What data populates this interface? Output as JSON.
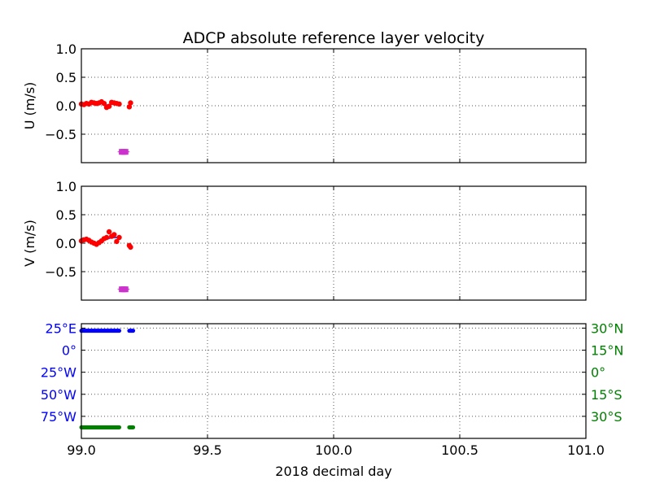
{
  "title": "ADCP absolute reference layer velocity",
  "xlabel": "2018 decimal day",
  "colors": {
    "u_points": "#ff0000",
    "u_line": "#4a3fd9",
    "flag": "#cc33cc",
    "lon": "#0000ff",
    "lat": "#008000",
    "grid": "#555555"
  },
  "chart_data": [
    {
      "type": "scatter",
      "ylabel": "U (m/s)",
      "xlim": [
        99.0,
        101.0
      ],
      "ylim": [
        -1.0,
        1.0
      ],
      "yticks": [
        1.0,
        0.5,
        0.0,
        -0.5
      ],
      "ytick_labels": [
        "1.0",
        "0.5",
        "0.0",
        "−0.5"
      ],
      "xticks": [
        99.0,
        99.5,
        100.0,
        100.5,
        101.0
      ],
      "grid": true,
      "series": [
        {
          "kind": "points",
          "x": [
            99.0,
            99.01,
            99.02,
            99.03,
            99.04,
            99.05,
            99.06,
            99.07,
            99.08,
            99.09,
            99.1,
            99.11,
            99.12,
            99.13,
            99.14,
            99.15,
            99.19,
            99.195
          ],
          "y": [
            0.03,
            0.02,
            0.04,
            0.03,
            0.06,
            0.05,
            0.04,
            0.05,
            0.07,
            0.04,
            -0.03,
            -0.01,
            0.06,
            0.05,
            0.04,
            0.03,
            -0.02,
            0.05
          ]
        },
        {
          "kind": "line",
          "x": [
            99.0,
            99.02,
            99.04,
            99.06,
            99.08,
            99.1,
            99.12,
            99.14,
            99.15
          ],
          "y": [
            0.03,
            0.035,
            0.04,
            0.045,
            0.04,
            0.01,
            0.03,
            0.04,
            0.04
          ]
        },
        {
          "kind": "flags",
          "x": [
            99.16,
            99.165,
            99.17,
            99.175
          ],
          "y": [
            -0.81,
            -0.81,
            -0.81,
            -0.81
          ]
        }
      ]
    },
    {
      "type": "scatter",
      "ylabel": "V (m/s)",
      "xlim": [
        99.0,
        101.0
      ],
      "ylim": [
        -1.0,
        1.0
      ],
      "yticks": [
        1.0,
        0.5,
        0.0,
        -0.5
      ],
      "ytick_labels": [
        "1.0",
        "0.5",
        "0.0",
        "−0.5"
      ],
      "xticks": [
        99.0,
        99.5,
        100.0,
        100.5,
        101.0
      ],
      "grid": true,
      "series": [
        {
          "kind": "points",
          "x": [
            99.0,
            99.01,
            99.02,
            99.03,
            99.04,
            99.05,
            99.06,
            99.07,
            99.08,
            99.09,
            99.1,
            99.11,
            99.12,
            99.13,
            99.14,
            99.15,
            99.19,
            99.195
          ],
          "y": [
            0.04,
            0.06,
            0.07,
            0.05,
            0.02,
            0.0,
            -0.02,
            0.01,
            0.04,
            0.08,
            0.1,
            0.2,
            0.12,
            0.15,
            0.03,
            0.1,
            -0.04,
            -0.07
          ]
        },
        {
          "kind": "line",
          "x": [
            99.0,
            99.02,
            99.04,
            99.06,
            99.08,
            99.1,
            99.12,
            99.14,
            99.15
          ],
          "y": [
            0.04,
            0.05,
            0.03,
            0.01,
            0.03,
            0.07,
            0.1,
            0.1,
            0.08
          ]
        },
        {
          "kind": "flags",
          "x": [
            99.16,
            99.165,
            99.17,
            99.175
          ],
          "y": [
            -0.81,
            -0.81,
            -0.81,
            -0.81
          ]
        }
      ]
    },
    {
      "type": "scatter",
      "xlim": [
        99.0,
        101.0
      ],
      "xticks": [
        99.0,
        99.5,
        100.0,
        100.5,
        101.0
      ],
      "xtick_labels": [
        "99.0",
        "99.5",
        "100.0",
        "100.5",
        "101.0"
      ],
      "grid": true,
      "left_axis": {
        "ylim": [
          -100,
          30
        ],
        "yticks": [
          25,
          0,
          -25,
          -50,
          -75
        ],
        "ytick_labels": [
          "25°E",
          "0°",
          "25°W",
          "50°W",
          "75°W"
        ]
      },
      "right_axis": {
        "ylim": [
          -45,
          33
        ],
        "yticks": [
          30,
          15,
          0,
          -15,
          -30
        ],
        "ytick_labels": [
          "30°N",
          "15°N",
          "0°",
          "15°S",
          "30°S"
        ]
      },
      "series": [
        {
          "kind": "lon",
          "segments": [
            [
              99.0,
              99.15
            ],
            [
              99.19,
              99.205
            ]
          ],
          "y": 22
        },
        {
          "kind": "lat",
          "segments": [
            [
              99.0,
              99.15
            ],
            [
              99.19,
              99.205
            ]
          ],
          "y": -37.5
        }
      ]
    }
  ]
}
